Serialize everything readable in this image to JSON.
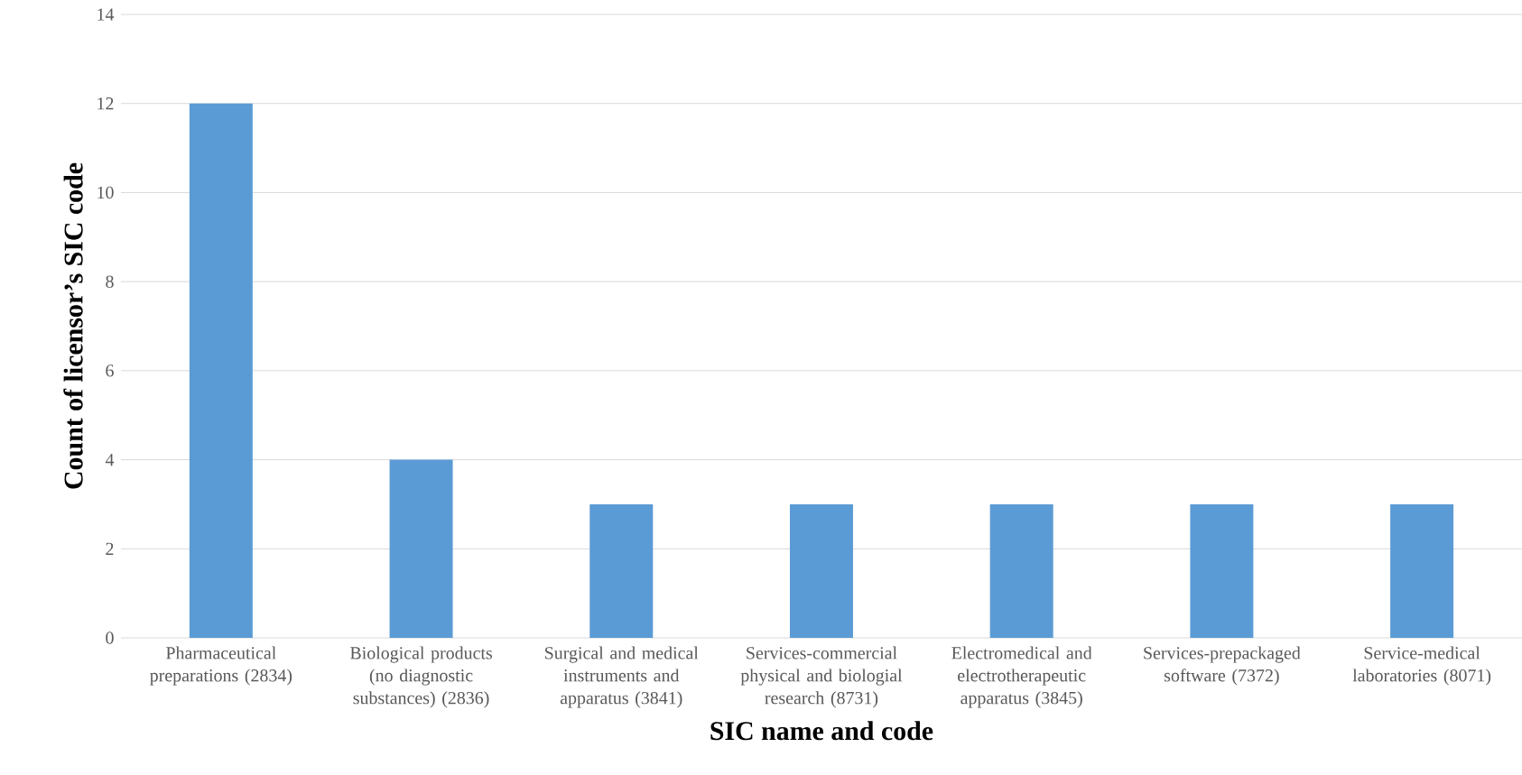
{
  "chart_data": {
    "type": "bar",
    "xlabel": "SIC name and code",
    "ylabel": "Count of licensor’s SIC code",
    "categories": [
      "Pharmaceutical preparations (2834)",
      "Biological products (no diagnostic substances) (2836)",
      "Surgical and medical instruments and apparatus (3841)",
      "Services-commercial physical and biologial research (8731)",
      "Electromedical and electrotherapeutic apparatus (3845)",
      "Services-prepackaged software (7372)",
      "Service-medical laboratories (8071)"
    ],
    "values": [
      12,
      4,
      3,
      3,
      3,
      3,
      3
    ],
    "color": "#5b9bd5",
    "ylim": [
      0,
      14
    ],
    "yticks": [
      0,
      2,
      4,
      6,
      8,
      10,
      12,
      14
    ],
    "grid": "y"
  }
}
